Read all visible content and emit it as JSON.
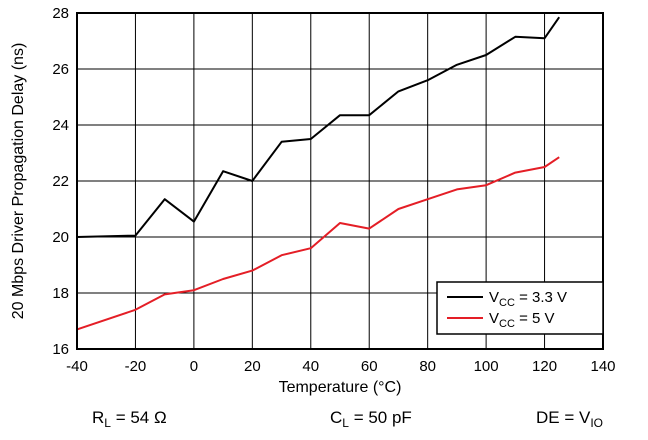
{
  "chart_data": {
    "type": "line",
    "xlabel": "Temperature (°C)",
    "ylabel": "20 Mbps Driver Propagation Delay (ns)",
    "xlim": [
      -40,
      140
    ],
    "ylim": [
      16,
      28
    ],
    "xticks": [
      -40,
      -20,
      0,
      20,
      40,
      60,
      80,
      100,
      120,
      140
    ],
    "yticks": [
      16,
      18,
      20,
      22,
      24,
      26,
      28
    ],
    "xtick_labels": [
      "-40",
      "-20",
      "0",
      "20",
      "40",
      "60",
      "80",
      "100",
      "120",
      "140"
    ],
    "ytick_labels": [
      "16",
      "18",
      "20",
      "22",
      "24",
      "26",
      "28"
    ],
    "grid": true,
    "legend_position": "bottom-right",
    "series": [
      {
        "name_parts": [
          "V",
          "CC",
          " = 3.3 V"
        ],
        "color": "#000000",
        "x": [
          -40,
          -20,
          -10,
          0,
          10,
          20,
          30,
          40,
          50,
          60,
          70,
          80,
          90,
          100,
          110,
          120,
          125
        ],
        "y": [
          20.0,
          20.05,
          21.35,
          20.55,
          22.35,
          22.0,
          23.4,
          23.5,
          24.35,
          24.35,
          25.2,
          25.6,
          26.15,
          26.5,
          27.15,
          27.1,
          27.85
        ]
      },
      {
        "name_parts": [
          "V",
          "CC",
          " = 5 V"
        ],
        "color": "#e41e26",
        "x": [
          -40,
          -20,
          -10,
          0,
          10,
          20,
          30,
          40,
          50,
          60,
          70,
          80,
          90,
          100,
          110,
          120,
          125
        ],
        "y": [
          16.7,
          17.4,
          17.95,
          18.1,
          18.5,
          18.8,
          19.35,
          19.6,
          20.5,
          20.3,
          21.0,
          21.35,
          21.7,
          21.85,
          22.3,
          22.5,
          22.85
        ]
      }
    ]
  },
  "conditions": {
    "rl": {
      "base": "R",
      "sub": "L",
      "rest": " = 54 Ω"
    },
    "cl": {
      "base": "C",
      "sub": "L",
      "rest": " = 50 pF"
    },
    "de": {
      "base": "DE = V",
      "sub": "IO",
      "rest": ""
    }
  }
}
